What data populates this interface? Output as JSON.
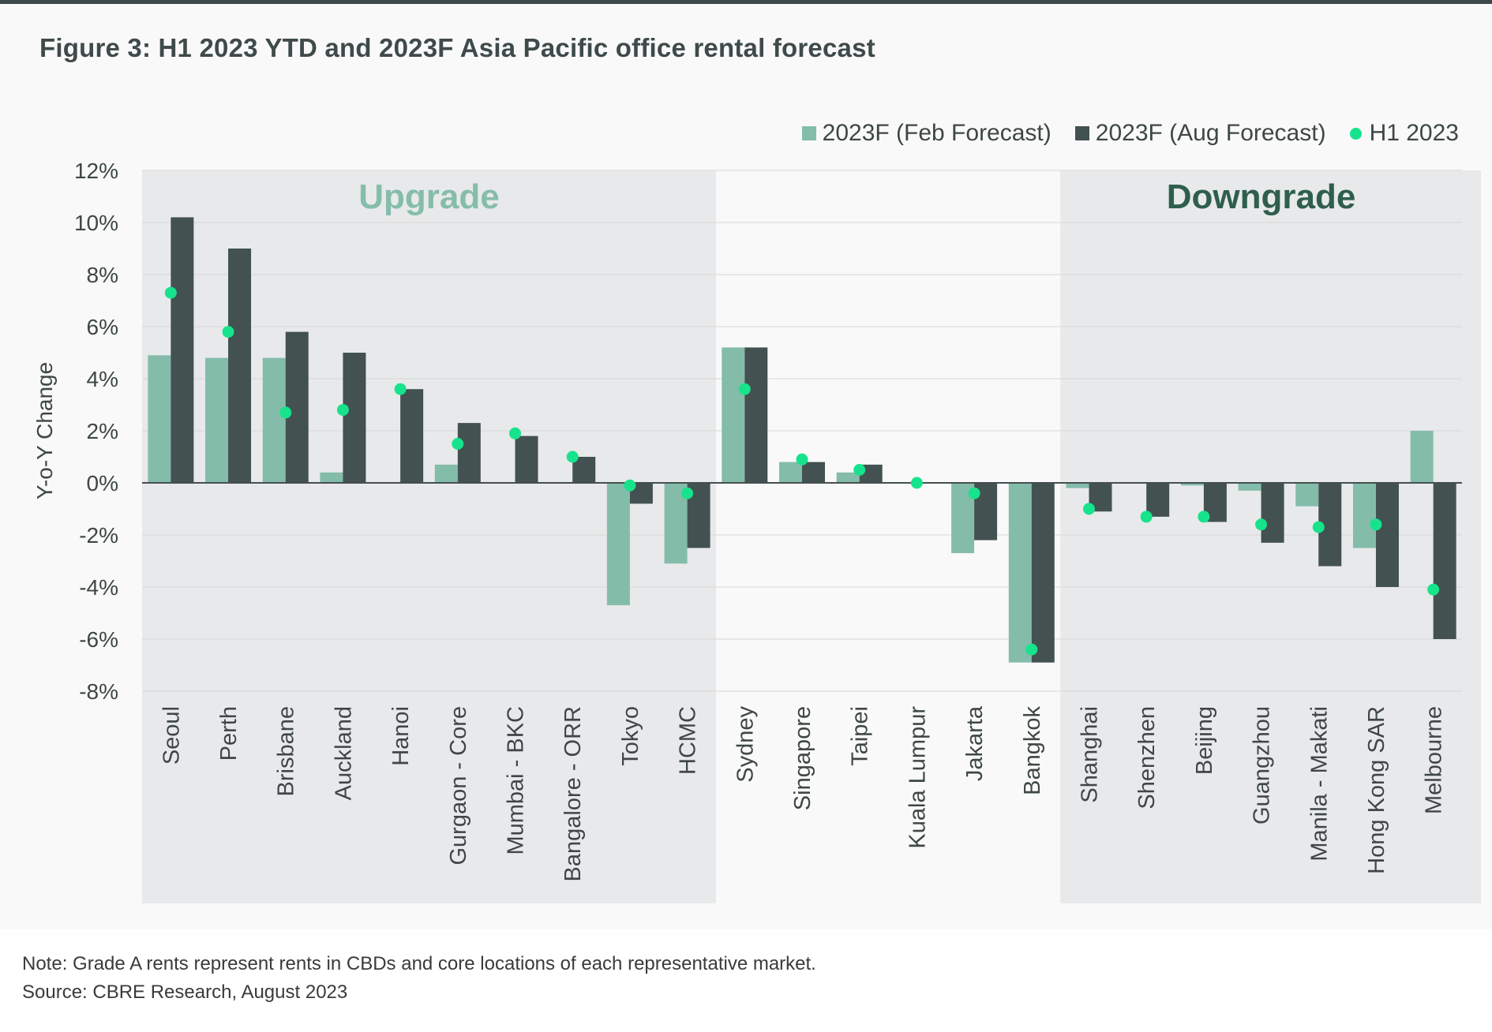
{
  "title": "Figure 3: H1 2023 YTD and 2023F Asia Pacific office rental forecast",
  "legend": {
    "feb": "2023F (Feb Forecast)",
    "aug": "2023F (Aug Forecast)",
    "h1": "H1 2023"
  },
  "colors": {
    "feb": "#84bcaa",
    "aug": "#435151",
    "h1": "#17e38c",
    "upgrade_text": "#85bdab",
    "downgrade_text": "#2f5e4d",
    "shade": "#e8e9ea"
  },
  "regions": {
    "upgrade": "Upgrade",
    "downgrade": "Downgrade"
  },
  "chart_data": {
    "type": "bar",
    "ylabel": "Y-o-Y Change",
    "ylim": [
      -8,
      12
    ],
    "yticks": [
      "12%",
      "10%",
      "8%",
      "6%",
      "4%",
      "2%",
      "0%",
      "-2%",
      "-4%",
      "-6%",
      "-8%"
    ],
    "categories": [
      "Seoul",
      "Perth",
      "Brisbane",
      "Auckland",
      "Hanoi",
      "Gurgaon - Core",
      "Mumbai - BKC",
      "Bangalore - ORR",
      "Tokyo",
      "HCMC",
      "Sydney",
      "Singapore",
      "Taipei",
      "Kuala Lumpur",
      "Jakarta",
      "Bangkok",
      "Shanghai",
      "Shenzhen",
      "Beijing",
      "Guangzhou",
      "Manila - Makati",
      "Hong Kong SAR",
      "Melbourne"
    ],
    "series": [
      {
        "name": "2023F (Feb Forecast)",
        "kind": "bar",
        "values": [
          4.9,
          4.8,
          4.8,
          0.4,
          0.0,
          0.7,
          0.0,
          0.0,
          -4.7,
          -3.1,
          5.2,
          0.8,
          0.4,
          0.0,
          -2.7,
          -6.9,
          -0.2,
          0.0,
          -0.1,
          -0.3,
          -0.9,
          -2.5,
          2.0
        ]
      },
      {
        "name": "2023F (Aug Forecast)",
        "kind": "bar",
        "values": [
          10.2,
          9.0,
          5.8,
          5.0,
          3.6,
          2.3,
          1.8,
          1.0,
          -0.8,
          -2.5,
          5.2,
          0.8,
          0.7,
          0.0,
          -2.2,
          -6.9,
          -1.1,
          -1.3,
          -1.5,
          -2.3,
          -3.2,
          -4.0,
          -6.0
        ]
      },
      {
        "name": "H1 2023",
        "kind": "dot",
        "values": [
          7.3,
          5.8,
          2.7,
          2.8,
          3.6,
          1.5,
          1.9,
          1.0,
          -0.1,
          -0.4,
          3.6,
          0.9,
          0.5,
          0.0,
          -0.4,
          -6.4,
          -1.0,
          -1.3,
          -1.3,
          -1.6,
          -1.7,
          -1.6,
          -4.1
        ]
      }
    ],
    "upgrade_range": [
      0,
      9
    ],
    "downgrade_range": [
      16,
      22
    ]
  },
  "footer": {
    "note": "Note: Grade A rents represent rents in CBDs and core locations of each representative market.",
    "source": "Source: CBRE Research, August 2023"
  }
}
